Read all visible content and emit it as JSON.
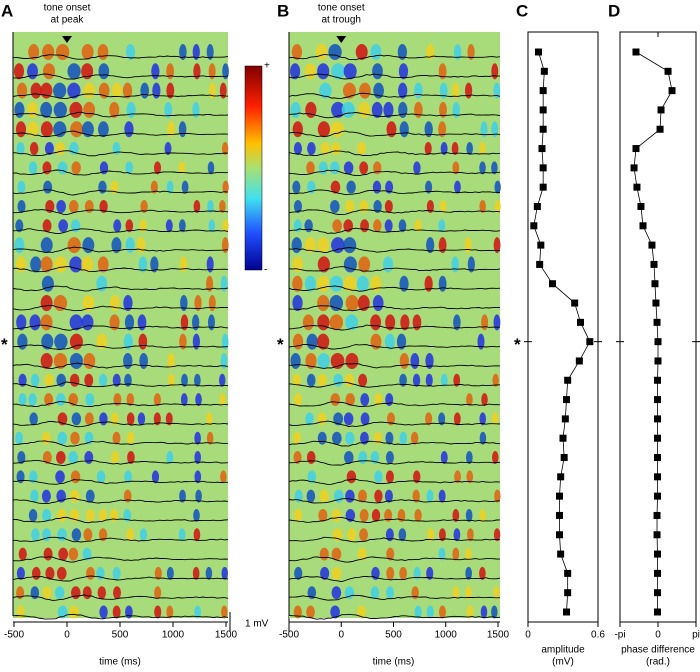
{
  "chart_data": [
    {
      "type": "heatmap",
      "panel_label": "A",
      "annotation": [
        "tone onset",
        "at peak"
      ],
      "x_label": "time (ms)",
      "xlim": [
        -500,
        1500
      ],
      "xticks": [
        -500,
        0,
        500,
        1000,
        1500
      ],
      "row_marker": "*",
      "scale_bar": "1 mV",
      "colorbar_labels": [
        "+",
        "-"
      ]
    },
    {
      "type": "heatmap",
      "panel_label": "B",
      "annotation": [
        "tone onset",
        "at trough"
      ],
      "x_label": "time (ms)",
      "xlim": [
        -500,
        1500
      ],
      "xticks": [
        -500,
        0,
        500,
        1000,
        1500
      ],
      "row_marker": "*"
    },
    {
      "type": "line",
      "panel_label": "C",
      "x_label": [
        "amplitude",
        "(mV)"
      ],
      "xlim": [
        0,
        0.6
      ],
      "xticks": [
        0,
        0.6
      ],
      "categories": [
        null,
        null,
        null,
        null,
        null,
        null,
        null,
        null,
        null,
        null,
        null,
        null,
        null,
        null,
        null,
        null,
        null,
        null,
        null,
        null,
        null,
        null,
        null,
        null,
        null,
        null,
        null,
        null,
        null,
        null
      ],
      "values": [
        0.09,
        0.14,
        0.13,
        0.13,
        0.13,
        0.12,
        0.13,
        0.13,
        0.08,
        0.05,
        0.11,
        0.1,
        0.21,
        0.4,
        0.45,
        0.53,
        0.44,
        0.34,
        0.33,
        0.32,
        0.3,
        0.31,
        0.28,
        0.27,
        0.27,
        0.27,
        0.28,
        0.34,
        0.34,
        0.33
      ],
      "color": "#000000",
      "row_marker": "*"
    },
    {
      "type": "line",
      "panel_label": "D",
      "x_label": [
        "phase difference",
        "(rad.)"
      ],
      "xlim": [
        -3.14159,
        3.14159
      ],
      "xticks": [
        {
          "value": -3.14159,
          "label": "-pi"
        },
        0,
        {
          "value": 3.14159,
          "label": "pi"
        }
      ],
      "categories": [
        null,
        null,
        null,
        null,
        null,
        null,
        null,
        null,
        null,
        null,
        null,
        null,
        null,
        null,
        null,
        null,
        null,
        null,
        null,
        null,
        null,
        null,
        null,
        null,
        null,
        null,
        null,
        null,
        null,
        null
      ],
      "values": [
        -1.82,
        0.83,
        1.16,
        0.25,
        0.17,
        -1.82,
        -1.98,
        -1.74,
        -1.41,
        -1.24,
        -0.5,
        -0.33,
        -0.25,
        -0.17,
        -0.08,
        0,
        0,
        -0.04,
        -0.04,
        -0.04,
        -0.04,
        -0.04,
        -0.04,
        -0.04,
        -0.08,
        -0.08,
        -0.04,
        -0.04,
        -0.04,
        -0.04
      ],
      "color": "#000000"
    }
  ]
}
